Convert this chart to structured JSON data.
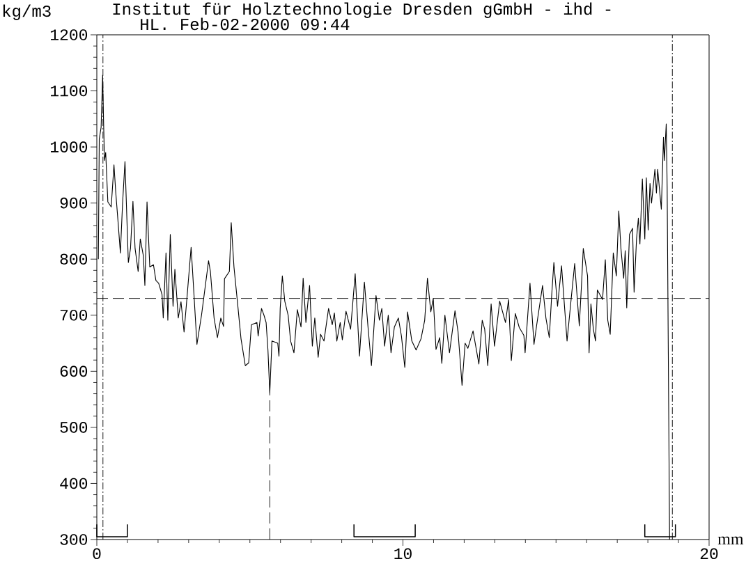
{
  "chart_data": {
    "type": "line",
    "title": "Institut für Holztechnologie Dresden gGmbH - ihd -",
    "subtitle": "HL. Feb-02-2000 09:44",
    "ylabel": "kg/m3",
    "xlabel": "mm",
    "xlim": [
      0,
      20
    ],
    "xticks": [
      0,
      10,
      20
    ],
    "ylim": [
      300,
      1200
    ],
    "yticks": [
      300,
      400,
      500,
      600,
      700,
      800,
      900,
      1000,
      1100,
      1200
    ],
    "series": [
      {
        "color": "#000000",
        "x": [
          0.05,
          0.08,
          0.14,
          0.19,
          0.22,
          0.25,
          0.29,
          0.36,
          0.47,
          0.56,
          0.62,
          0.69,
          0.77,
          0.84,
          0.92,
          1.03,
          1.1,
          1.18,
          1.25,
          1.35,
          1.42,
          1.52,
          1.57,
          1.64,
          1.73,
          1.85,
          1.93,
          2.02,
          2.13,
          2.17,
          2.26,
          2.32,
          2.4,
          2.49,
          2.55,
          2.66,
          2.75,
          2.85,
          2.94,
          3.08,
          3.12,
          3.27,
          3.42,
          3.65,
          3.71,
          3.83,
          3.94,
          4.05,
          4.14,
          4.17,
          4.33,
          4.39,
          4.48,
          4.6,
          4.71,
          4.85,
          4.96,
          5.05,
          5.23,
          5.27,
          5.38,
          5.46,
          5.53,
          5.59,
          5.65,
          5.72,
          5.91,
          5.95,
          5.99,
          6.06,
          6.14,
          6.25,
          6.33,
          6.44,
          6.55,
          6.67,
          6.74,
          6.83,
          6.95,
          7.04,
          7.12,
          7.23,
          7.31,
          7.42,
          7.57,
          7.69,
          7.76,
          7.84,
          7.95,
          8.02,
          8.14,
          8.29,
          8.44,
          8.58,
          8.74,
          8.86,
          8.97,
          9.12,
          9.23,
          9.31,
          9.4,
          9.52,
          9.61,
          9.72,
          9.85,
          9.95,
          10.06,
          10.15,
          10.29,
          10.43,
          10.59,
          10.71,
          10.8,
          10.91,
          10.99,
          11.08,
          11.2,
          11.27,
          11.37,
          11.52,
          11.7,
          11.8,
          11.93,
          12.03,
          12.12,
          12.29,
          12.48,
          12.59,
          12.67,
          12.77,
          12.88,
          12.99,
          13.16,
          13.35,
          13.45,
          13.54,
          13.67,
          13.8,
          13.95,
          13.99,
          14.15,
          14.28,
          14.37,
          14.56,
          14.67,
          14.78,
          14.86,
          14.93,
          15.05,
          15.18,
          15.36,
          15.5,
          15.61,
          15.76,
          15.84,
          15.89,
          16.03,
          16.08,
          16.14,
          16.22,
          16.29,
          16.35,
          16.52,
          16.61,
          16.69,
          16.77,
          16.87,
          16.97,
          17.05,
          17.12,
          17.21,
          17.26,
          17.31,
          17.4,
          17.5,
          17.55,
          17.63,
          17.69,
          17.74,
          17.82,
          17.9,
          17.95,
          18.01,
          18.07,
          18.12,
          18.23,
          18.28,
          18.32,
          18.44,
          18.51,
          18.54,
          18.6,
          18.63,
          18.71
        ],
        "values": [
          800,
          1014,
          1035,
          1128,
          1047,
          976,
          990,
          902,
          893,
          968,
          918,
          869,
          811,
          898,
          974,
          794,
          819,
          903,
          819,
          778,
          836,
          806,
          753,
          902,
          786,
          790,
          762,
          757,
          737,
          695,
          811,
          691,
          844,
          716,
          782,
          695,
          724,
          670,
          728,
          821,
          786,
          648,
          700,
          797,
          778,
          695,
          660,
          695,
          680,
          765,
          778,
          865,
          786,
          720,
          658,
          610,
          615,
          683,
          687,
          663,
          712,
          700,
          687,
          638,
          561,
          654,
          650,
          627,
          712,
          770,
          725,
          700,
          654,
          633,
          710,
          679,
          766,
          687,
          753,
          645,
          695,
          625,
          666,
          654,
          712,
          683,
          704,
          654,
          687,
          656,
          707,
          675,
          774,
          627,
          759,
          678,
          610,
          735,
          691,
          712,
          645,
          700,
          633,
          679,
          695,
          663,
          607,
          706,
          654,
          638,
          658,
          691,
          766,
          706,
          730,
          639,
          660,
          614,
          700,
          633,
          708,
          670,
          575,
          650,
          641,
          672,
          613,
          691,
          675,
          610,
          720,
          645,
          725,
          687,
          728,
          619,
          703,
          678,
          664,
          633,
          757,
          648,
          683,
          753,
          695,
          660,
          737,
          794,
          716,
          788,
          654,
          732,
          792,
          681,
          762,
          819,
          770,
          633,
          720,
          675,
          654,
          745,
          728,
          799,
          691,
          666,
          811,
          770,
          886,
          819,
          766,
          815,
          713,
          844,
          855,
          741,
          836,
          873,
          827,
          943,
          836,
          945,
          852,
          935,
          900,
          960,
          918,
          960,
          889,
          1017,
          976,
          1041,
          930,
          300
        ]
      },
      {
        "type": "line",
        "color": "#000000",
        "x": [
          0,
          0,
          1.0,
          1.0,
          5,
          8.4,
          8.4,
          10.4,
          10.4,
          15,
          17.9,
          17.9,
          18.9,
          18.9
        ],
        "values": [
          327,
          305,
          305,
          327,
          null,
          327,
          305,
          305,
          327,
          null,
          327,
          305,
          305,
          327
        ]
      }
    ],
    "ref_lines": [
      {
        "axis": "y",
        "value": 730,
        "line_style": "dashed"
      },
      {
        "axis": "x",
        "value": 0.2,
        "line_style": "dashdot"
      },
      {
        "axis": "x",
        "value": 18.8,
        "line_style": "dashdot"
      },
      {
        "axis": "x",
        "value": 5.65,
        "line_style": "dashed"
      }
    ]
  }
}
